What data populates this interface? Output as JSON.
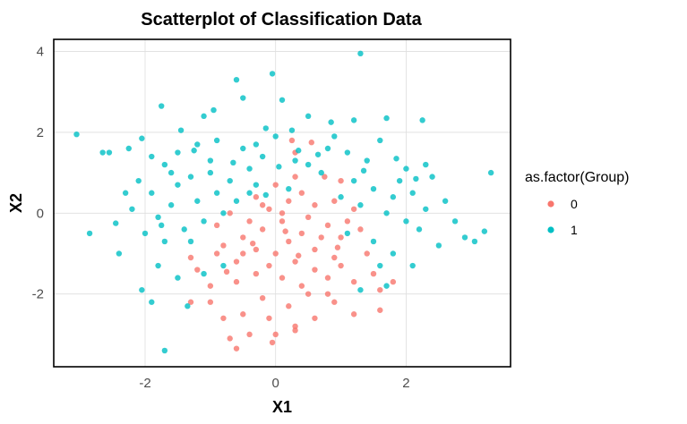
{
  "chart_data": {
    "type": "scatter",
    "title": "Scatterplot of Classification Data",
    "xlabel": "X1",
    "ylabel": "X2",
    "xlim": [
      -3.4,
      3.6
    ],
    "ylim": [
      -3.8,
      4.3
    ],
    "x_ticks": [
      -2,
      0,
      2
    ],
    "y_ticks": [
      -2,
      0,
      2,
      4
    ],
    "x_tick_labels": [
      "-2",
      "0",
      "2"
    ],
    "y_tick_labels": [
      "-2",
      "0",
      "2",
      "4"
    ],
    "grid": true,
    "legend": {
      "title": "as.factor(Group)",
      "position": "right",
      "entries": [
        "0",
        "1"
      ]
    },
    "series": [
      {
        "name": "0",
        "color": "#F8766D",
        "points": [
          [
            0.25,
            1.8
          ],
          [
            0.3,
            1.5
          ],
          [
            0.55,
            1.75
          ],
          [
            0.3,
            0.9
          ],
          [
            0.0,
            0.7
          ],
          [
            0.75,
            0.9
          ],
          [
            1.0,
            0.8
          ],
          [
            0.2,
            0.3
          ],
          [
            -0.3,
            0.4
          ],
          [
            -0.7,
            0.0
          ],
          [
            -0.9,
            -0.3
          ],
          [
            -0.5,
            -0.6
          ],
          [
            -0.2,
            -0.4
          ],
          [
            0.1,
            -0.2
          ],
          [
            0.4,
            -0.5
          ],
          [
            0.8,
            -0.3
          ],
          [
            1.0,
            -0.6
          ],
          [
            1.3,
            -0.4
          ],
          [
            0.6,
            0.2
          ],
          [
            -0.3,
            -0.9
          ],
          [
            0.0,
            -1.0
          ],
          [
            0.3,
            -1.2
          ],
          [
            0.6,
            -0.9
          ],
          [
            0.9,
            -1.1
          ],
          [
            -0.6,
            -1.2
          ],
          [
            -0.9,
            -1.0
          ],
          [
            -1.2,
            -1.4
          ],
          [
            -1.0,
            -1.8
          ],
          [
            -0.6,
            -1.7
          ],
          [
            -0.3,
            -1.5
          ],
          [
            0.1,
            -1.6
          ],
          [
            0.4,
            -1.8
          ],
          [
            0.8,
            -1.6
          ],
          [
            1.2,
            -1.7
          ],
          [
            1.5,
            -1.5
          ],
          [
            -0.2,
            -2.1
          ],
          [
            0.2,
            -2.3
          ],
          [
            0.5,
            -2.0
          ],
          [
            -0.5,
            -2.5
          ],
          [
            -0.1,
            -2.6
          ],
          [
            0.3,
            -2.8
          ],
          [
            -1.0,
            -2.2
          ],
          [
            -0.8,
            -2.6
          ],
          [
            0.6,
            -2.6
          ],
          [
            0.9,
            -2.2
          ],
          [
            1.2,
            -2.5
          ],
          [
            -0.4,
            -3.0
          ],
          [
            0.0,
            -3.0
          ],
          [
            0.3,
            -2.9
          ],
          [
            1.6,
            -2.4
          ],
          [
            -0.7,
            -3.1
          ],
          [
            -0.6,
            -3.35
          ],
          [
            -0.05,
            -3.2
          ],
          [
            -1.3,
            -2.2
          ],
          [
            1.8,
            -1.7
          ],
          [
            1.6,
            -1.9
          ],
          [
            0.5,
            -0.1
          ],
          [
            -0.1,
            0.1
          ],
          [
            -0.4,
            -0.2
          ],
          [
            0.2,
            -0.7
          ],
          [
            0.7,
            -0.6
          ],
          [
            1.1,
            -0.2
          ],
          [
            -0.8,
            -0.8
          ],
          [
            0.4,
            0.5
          ],
          [
            0.9,
            0.3
          ],
          [
            -0.2,
            0.2
          ],
          [
            0.1,
            0.0
          ],
          [
            0.6,
            -1.4
          ],
          [
            1.4,
            -1.0
          ],
          [
            -1.3,
            -1.1
          ],
          [
            -0.1,
            -1.3
          ],
          [
            0.8,
            -2.0
          ],
          [
            1.0,
            -1.3
          ],
          [
            -0.5,
            -1.0
          ],
          [
            1.2,
            0.1
          ],
          [
            0.35,
            -1.05
          ],
          [
            -0.75,
            -1.45
          ],
          [
            0.95,
            -0.85
          ],
          [
            0.15,
            -0.45
          ],
          [
            -0.35,
            -0.75
          ]
        ]
      },
      {
        "name": "1",
        "color": "#00BFC4",
        "points": [
          [
            1.3,
            3.95
          ],
          [
            -0.05,
            3.45
          ],
          [
            -0.6,
            3.3
          ],
          [
            0.1,
            2.8
          ],
          [
            -0.5,
            2.85
          ],
          [
            -1.75,
            2.65
          ],
          [
            -1.1,
            2.4
          ],
          [
            -0.95,
            2.55
          ],
          [
            -0.15,
            2.1
          ],
          [
            0.5,
            2.4
          ],
          [
            0.85,
            2.25
          ],
          [
            1.2,
            2.3
          ],
          [
            1.7,
            2.35
          ],
          [
            2.25,
            2.3
          ],
          [
            -1.45,
            2.05
          ],
          [
            -2.05,
            1.85
          ],
          [
            -3.05,
            1.95
          ],
          [
            -2.65,
            1.5
          ],
          [
            -2.55,
            1.5
          ],
          [
            -2.25,
            1.6
          ],
          [
            -1.9,
            1.4
          ],
          [
            -1.7,
            1.2
          ],
          [
            -1.5,
            1.5
          ],
          [
            -1.2,
            1.7
          ],
          [
            -0.9,
            1.8
          ],
          [
            -0.5,
            1.6
          ],
          [
            -0.2,
            1.4
          ],
          [
            0.0,
            1.9
          ],
          [
            0.8,
            1.6
          ],
          [
            1.1,
            1.5
          ],
          [
            1.4,
            1.3
          ],
          [
            1.6,
            1.8
          ],
          [
            2.0,
            1.1
          ],
          [
            2.3,
            1.2
          ],
          [
            2.4,
            0.9
          ],
          [
            3.3,
            1.0
          ],
          [
            -2.1,
            0.8
          ],
          [
            -1.9,
            0.5
          ],
          [
            -1.5,
            0.7
          ],
          [
            -1.3,
            0.9
          ],
          [
            -1.0,
            1.0
          ],
          [
            -0.7,
            0.8
          ],
          [
            -0.4,
            1.1
          ],
          [
            0.5,
            1.2
          ],
          [
            1.2,
            0.8
          ],
          [
            1.5,
            0.6
          ],
          [
            1.8,
            0.4
          ],
          [
            2.1,
            0.5
          ],
          [
            2.3,
            0.1
          ],
          [
            -2.2,
            0.1
          ],
          [
            -1.8,
            -0.1
          ],
          [
            -1.6,
            0.2
          ],
          [
            -1.2,
            0.3
          ],
          [
            -0.9,
            0.5
          ],
          [
            -0.6,
            0.3
          ],
          [
            -0.3,
            0.7
          ],
          [
            0.2,
            0.6
          ],
          [
            1.0,
            0.4
          ],
          [
            1.3,
            0.2
          ],
          [
            1.7,
            0.0
          ],
          [
            2.0,
            -0.2
          ],
          [
            2.2,
            -0.4
          ],
          [
            2.5,
            -0.8
          ],
          [
            2.9,
            -0.6
          ],
          [
            3.05,
            -0.7
          ],
          [
            3.2,
            -0.45
          ],
          [
            -2.85,
            -0.5
          ],
          [
            -2.4,
            -1.0
          ],
          [
            -2.0,
            -0.5
          ],
          [
            -1.7,
            -0.7
          ],
          [
            -1.4,
            -0.4
          ],
          [
            -1.1,
            -0.2
          ],
          [
            1.5,
            -0.7
          ],
          [
            1.8,
            -1.0
          ],
          [
            2.1,
            -1.3
          ],
          [
            1.7,
            -1.8
          ],
          [
            1.3,
            -1.9
          ],
          [
            -1.5,
            -1.6
          ],
          [
            -1.8,
            -1.3
          ],
          [
            -2.05,
            -1.9
          ],
          [
            -1.9,
            -2.2
          ],
          [
            -1.35,
            -2.3
          ],
          [
            -1.7,
            -3.4
          ],
          [
            -1.1,
            -1.5
          ],
          [
            -0.8,
            -1.3
          ],
          [
            -1.0,
            1.3
          ],
          [
            -0.3,
            1.7
          ],
          [
            0.3,
            1.3
          ],
          [
            0.7,
            1.0
          ],
          [
            -1.6,
            1.0
          ],
          [
            1.9,
            0.8
          ],
          [
            -0.8,
            0.0
          ],
          [
            -1.3,
            -0.7
          ],
          [
            2.6,
            0.3
          ],
          [
            -0.4,
            0.5
          ],
          [
            0.9,
            1.9
          ],
          [
            -2.3,
            0.5
          ],
          [
            1.1,
            -0.5
          ],
          [
            1.6,
            -1.3
          ],
          [
            -1.25,
            1.55
          ],
          [
            0.35,
            1.55
          ],
          [
            1.85,
            1.35
          ],
          [
            -0.15,
            0.45
          ],
          [
            0.65,
            1.45
          ],
          [
            2.15,
            0.85
          ],
          [
            -1.75,
            -0.3
          ],
          [
            0.25,
            2.05
          ],
          [
            -0.65,
            1.25
          ],
          [
            1.35,
            1.05
          ],
          [
            -2.45,
            -0.25
          ],
          [
            2.75,
            -0.2
          ],
          [
            0.05,
            1.15
          ]
        ]
      }
    ]
  }
}
